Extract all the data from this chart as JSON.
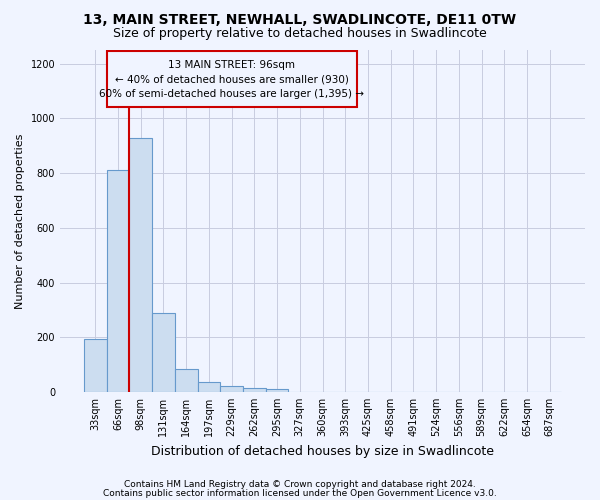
{
  "title": "13, MAIN STREET, NEWHALL, SWADLINCOTE, DE11 0TW",
  "subtitle": "Size of property relative to detached houses in Swadlincote",
  "xlabel": "Distribution of detached houses by size in Swadlincote",
  "ylabel": "Number of detached properties",
  "bar_color": "#ccddf0",
  "bar_edge_color": "#6699cc",
  "vline_color": "#cc0000",
  "vline_x_bar_index": 1.5,
  "annotation_line1": "13 MAIN STREET: 96sqm",
  "annotation_line2": "← 40% of detached houses are smaller (930)",
  "annotation_line3": "60% of semi-detached houses are larger (1,395) →",
  "annotation_box_color": "#cc0000",
  "categories": [
    "33sqm",
    "66sqm",
    "98sqm",
    "131sqm",
    "164sqm",
    "197sqm",
    "229sqm",
    "262sqm",
    "295sqm",
    "327sqm",
    "360sqm",
    "393sqm",
    "425sqm",
    "458sqm",
    "491sqm",
    "524sqm",
    "556sqm",
    "589sqm",
    "622sqm",
    "654sqm",
    "687sqm"
  ],
  "values": [
    195,
    810,
    930,
    290,
    85,
    35,
    20,
    15,
    10,
    0,
    0,
    0,
    0,
    0,
    0,
    0,
    0,
    0,
    0,
    0,
    0
  ],
  "ylim": [
    0,
    1250
  ],
  "yticks": [
    0,
    200,
    400,
    600,
    800,
    1000,
    1200
  ],
  "footer1": "Contains HM Land Registry data © Crown copyright and database right 2024.",
  "footer2": "Contains public sector information licensed under the Open Government Licence v3.0.",
  "bg_color": "#f0f4ff",
  "grid_color": "#c8cce0"
}
